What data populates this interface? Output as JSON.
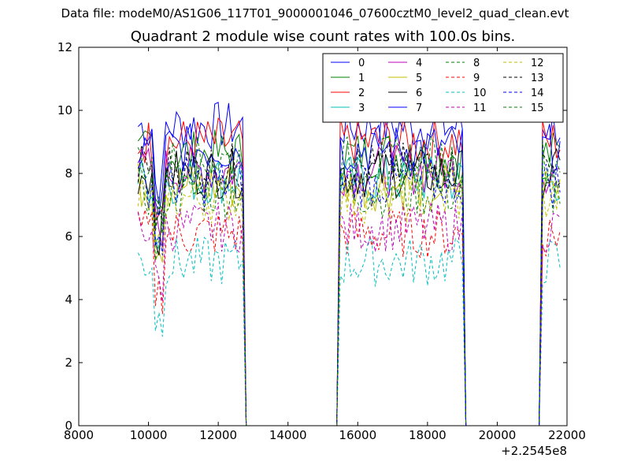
{
  "chart_data": {
    "type": "line",
    "suptitle": "Data file: modeM0/AS1G06_117T01_9000001046_07600cztM0_level2_quad_clean.evt",
    "title": "Quadrant 2 module wise count rates with 100.0s bins.",
    "xlabel": "",
    "ylabel": "",
    "x_offset_label": "+2.2545e8",
    "xlim": [
      8000,
      22000
    ],
    "ylim": [
      0,
      12
    ],
    "x_ticks": [
      8000,
      10000,
      12000,
      14000,
      16000,
      18000,
      20000,
      22000
    ],
    "y_ticks": [
      0,
      2,
      4,
      6,
      8,
      10,
      12
    ],
    "grid": false,
    "legend_position": "top-right",
    "segments": [
      {
        "start": 9700,
        "end": 12700
      },
      {
        "start": 15500,
        "end": 19000
      },
      {
        "start": 21300,
        "end": 21800
      }
    ],
    "series": [
      {
        "name": "0",
        "color": "#0000ff",
        "dash": "solid",
        "level": 9.5
      },
      {
        "name": "1",
        "color": "#008000",
        "dash": "solid",
        "level": 8.6
      },
      {
        "name": "2",
        "color": "#ff0000",
        "dash": "solid",
        "level": 9.0
      },
      {
        "name": "3",
        "color": "#00bfbf",
        "dash": "solid",
        "level": 7.8
      },
      {
        "name": "4",
        "color": "#bf00bf",
        "dash": "solid",
        "level": 8.1
      },
      {
        "name": "5",
        "color": "#bfbf00",
        "dash": "solid",
        "level": 7.6
      },
      {
        "name": "6",
        "color": "#000000",
        "dash": "solid",
        "level": 8.0
      },
      {
        "name": "7",
        "color": "#0000ff",
        "dash": "solid",
        "level": 8.8
      },
      {
        "name": "8",
        "color": "#008000",
        "dash": "dashed",
        "level": 7.4
      },
      {
        "name": "9",
        "color": "#ff0000",
        "dash": "dashed",
        "level": 6.1
      },
      {
        "name": "10",
        "color": "#00bfbf",
        "dash": "dashed",
        "level": 5.2
      },
      {
        "name": "11",
        "color": "#bf00bf",
        "dash": "dashed",
        "level": 6.3
      },
      {
        "name": "12",
        "color": "#bfbf00",
        "dash": "dashed",
        "level": 7.2
      },
      {
        "name": "13",
        "color": "#000000",
        "dash": "dashed",
        "level": 8.2
      },
      {
        "name": "14",
        "color": "#0000ff",
        "dash": "dashed",
        "level": 7.7
      },
      {
        "name": "15",
        "color": "#008000",
        "dash": "dashed",
        "level": 8.4
      }
    ]
  }
}
